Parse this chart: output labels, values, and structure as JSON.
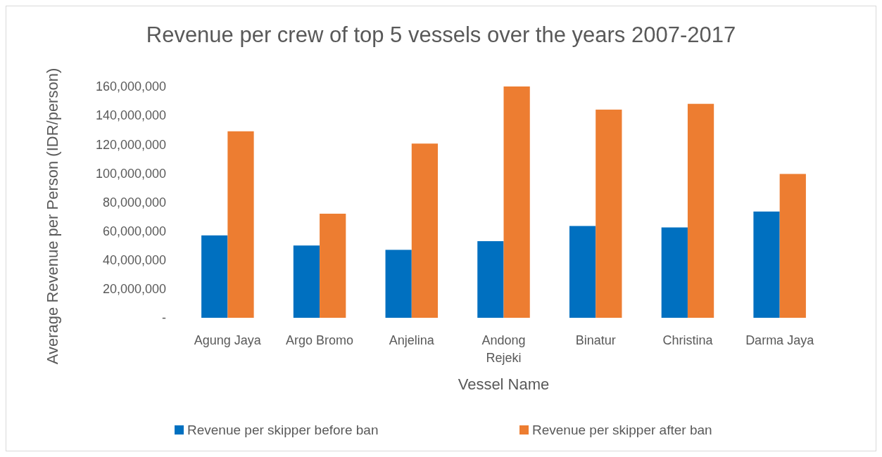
{
  "chart_data": {
    "type": "bar",
    "title": "Revenue per crew of top 5 vessels over the years 2007-2017",
    "xlabel": "Vessel Name",
    "ylabel": "Average Revenue per Person (IDR/person)",
    "categories": [
      "Agung Jaya",
      "Argo Bromo",
      "Anjelina",
      "Andong Rejeki",
      "Binatur",
      "Christina",
      "Darma Jaya"
    ],
    "series": [
      {
        "name": "Revenue per skipper before ban",
        "color": "#0070c0",
        "values": [
          57000000,
          50000000,
          47000000,
          53000000,
          63500000,
          62500000,
          73500000
        ]
      },
      {
        "name": "Revenue per skipper after ban",
        "color": "#ed7d31",
        "values": [
          129000000,
          72000000,
          120500000,
          160000000,
          144000000,
          148000000,
          99500000
        ]
      }
    ],
    "ylim": [
      0,
      160000000
    ],
    "yticks": [
      {
        "value": 0,
        "label": "-"
      },
      {
        "value": 20000000,
        "label": "20,000,000"
      },
      {
        "value": 40000000,
        "label": "40,000,000"
      },
      {
        "value": 60000000,
        "label": "60,000,000"
      },
      {
        "value": 80000000,
        "label": "80,000,000"
      },
      {
        "value": 100000000,
        "label": "100,000,000"
      },
      {
        "value": 120000000,
        "label": "120,000,000"
      },
      {
        "value": 140000000,
        "label": "140,000,000"
      },
      {
        "value": 160000000,
        "label": "160,000,000"
      }
    ],
    "legend": "bottom"
  }
}
